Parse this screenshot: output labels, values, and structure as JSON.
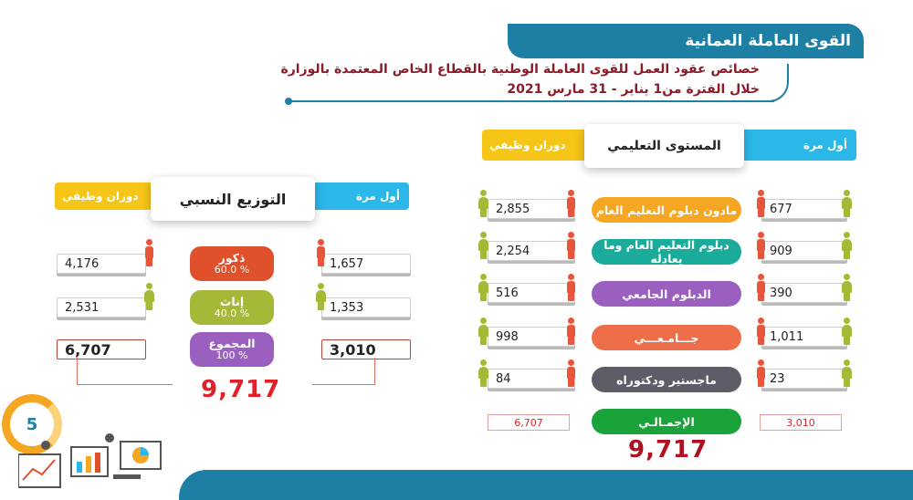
{
  "header": {
    "title": "القوى العاملة العمانية",
    "subtitle_line1": "خصائص عقود العمل للقوى العاملة الوطنية بالقطاع الخاص المعتمدة بالوزارة",
    "subtitle_line2": "خلال الفترة من1 يناير - 31 مارس 2021"
  },
  "page_number": "5",
  "left_panel": {
    "ribbon_right": "أول مرة",
    "ribbon_left": "دوران وظيفي",
    "card_title": "التوزيع النسبي",
    "rows": [
      {
        "label": "ذكور",
        "pct": "60.0 %",
        "first": "1,657",
        "turnover": "4,176",
        "color": "#e0502a"
      },
      {
        "label": "إناث",
        "pct": "40.0 %",
        "first": "1,353",
        "turnover": "2,531",
        "color": "#a6b838"
      },
      {
        "label": "المجموع",
        "pct": "100 %",
        "first": "3,010",
        "turnover": "6,707",
        "color": "#9b5fc0"
      }
    ],
    "grand_total": "9,717"
  },
  "right_panel": {
    "ribbon_right": "أول مرة",
    "ribbon_left": "دوران وظيفي",
    "card_title": "المستوى التعليمي",
    "rows": [
      {
        "label": "مادون دبلوم التعليم العام",
        "first": "677",
        "turnover": "2,855",
        "color": "#f5a623"
      },
      {
        "label": "دبلوم التعليم العام وما يعادله",
        "first": "909",
        "turnover": "2,254",
        "color": "#1aab9b"
      },
      {
        "label": "الدبلوم الجامعي",
        "first": "390",
        "turnover": "516",
        "color": "#9b5fc0"
      },
      {
        "label": "جـــامـعـــي",
        "first": "1,011",
        "turnover": "998",
        "color": "#ee6e4a"
      },
      {
        "label": "ماجستير ودكتوراه",
        "first": "23",
        "turnover": "84",
        "color": "#5d5d68"
      },
      {
        "label": "الإجمـالـي",
        "first": "3,010",
        "turnover": "6,707",
        "color": "#1aa33a"
      }
    ],
    "grand_total": "9,717"
  },
  "chart_data": [
    {
      "type": "table",
      "title": "التوزيع النسبي",
      "columns": [
        "أول مرة",
        "دوران وظيفي"
      ],
      "categories": [
        "ذكور",
        "إناث",
        "المجموع"
      ],
      "percent": [
        60.0,
        40.0,
        100
      ],
      "series": [
        {
          "name": "أول مرة",
          "values": [
            1657,
            1353,
            3010
          ]
        },
        {
          "name": "دوران وظيفي",
          "values": [
            4176,
            2531,
            6707
          ]
        }
      ],
      "total": 9717
    },
    {
      "type": "table",
      "title": "المستوى التعليمي",
      "columns": [
        "أول مرة",
        "دوران وظيفي"
      ],
      "categories": [
        "مادون دبلوم التعليم العام",
        "دبلوم التعليم العام وما يعادله",
        "الدبلوم الجامعي",
        "جامعي",
        "ماجستير ودكتوراه",
        "الإجمالي"
      ],
      "series": [
        {
          "name": "أول مرة",
          "values": [
            677,
            909,
            390,
            1011,
            23,
            3010
          ]
        },
        {
          "name": "دوران وظيفي",
          "values": [
            2855,
            2254,
            516,
            998,
            84,
            6707
          ]
        }
      ],
      "total": 9717
    }
  ]
}
